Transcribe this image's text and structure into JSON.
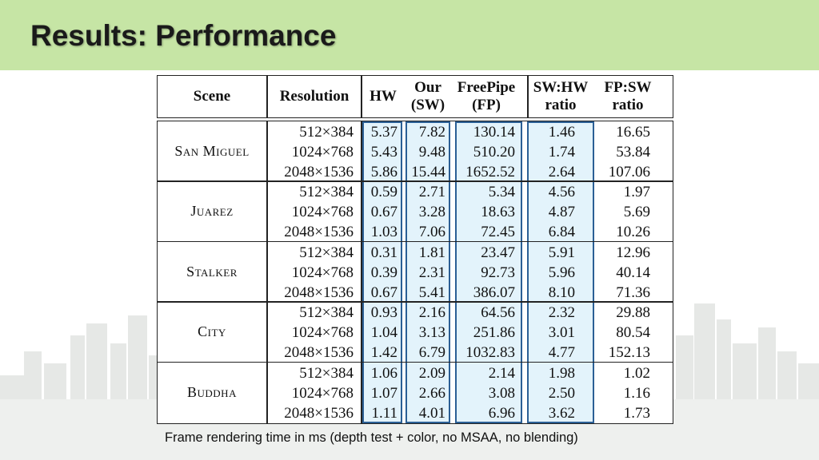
{
  "slide": {
    "title": "Results: Performance",
    "caption": "Frame rendering time in ms (depth test + color, no MSAA, no blending)"
  },
  "table": {
    "headers": {
      "scene": "Scene",
      "resolution": "Resolution",
      "hw": "HW",
      "sw_line1": "Our",
      "sw_line2": "(SW)",
      "fp_line1": "FreePipe",
      "fp_line2": "(FP)",
      "swhw_line1": "SW:HW",
      "swhw_line2": "ratio",
      "fpsw_line1": "FP:SW",
      "fpsw_line2": "ratio"
    },
    "scenes": [
      {
        "name": "San Miguel",
        "rows": [
          {
            "res": "512×384",
            "hw": "5.37",
            "sw": "7.82",
            "fp": "130.14",
            "swhw": "1.46",
            "fpsw": "16.65"
          },
          {
            "res": "1024×768",
            "hw": "5.43",
            "sw": "9.48",
            "fp": "510.20",
            "swhw": "1.74",
            "fpsw": "53.84"
          },
          {
            "res": "2048×1536",
            "hw": "5.86",
            "sw": "15.44",
            "fp": "1652.52",
            "swhw": "2.64",
            "fpsw": "107.06"
          }
        ]
      },
      {
        "name": "Juarez",
        "rows": [
          {
            "res": "512×384",
            "hw": "0.59",
            "sw": "2.71",
            "fp": "5.34",
            "swhw": "4.56",
            "fpsw": "1.97"
          },
          {
            "res": "1024×768",
            "hw": "0.67",
            "sw": "3.28",
            "fp": "18.63",
            "swhw": "4.87",
            "fpsw": "5.69"
          },
          {
            "res": "2048×1536",
            "hw": "1.03",
            "sw": "7.06",
            "fp": "72.45",
            "swhw": "6.84",
            "fpsw": "10.26"
          }
        ]
      },
      {
        "name": "Stalker",
        "rows": [
          {
            "res": "512×384",
            "hw": "0.31",
            "sw": "1.81",
            "fp": "23.47",
            "swhw": "5.91",
            "fpsw": "12.96"
          },
          {
            "res": "1024×768",
            "hw": "0.39",
            "sw": "2.31",
            "fp": "92.73",
            "swhw": "5.96",
            "fpsw": "40.14"
          },
          {
            "res": "2048×1536",
            "hw": "0.67",
            "sw": "5.41",
            "fp": "386.07",
            "swhw": "8.10",
            "fpsw": "71.36"
          }
        ]
      },
      {
        "name": "City",
        "rows": [
          {
            "res": "512×384",
            "hw": "0.93",
            "sw": "2.16",
            "fp": "64.56",
            "swhw": "2.32",
            "fpsw": "29.88"
          },
          {
            "res": "1024×768",
            "hw": "1.04",
            "sw": "3.13",
            "fp": "251.86",
            "swhw": "3.01",
            "fpsw": "80.54"
          },
          {
            "res": "2048×1536",
            "hw": "1.42",
            "sw": "6.79",
            "fp": "1032.83",
            "swhw": "4.77",
            "fpsw": "152.13"
          }
        ]
      },
      {
        "name": "Buddha",
        "rows": [
          {
            "res": "512×384",
            "hw": "1.06",
            "sw": "2.09",
            "fp": "2.14",
            "swhw": "1.98",
            "fpsw": "1.02"
          },
          {
            "res": "1024×768",
            "hw": "1.07",
            "sw": "2.66",
            "fp": "3.08",
            "swhw": "2.50",
            "fpsw": "1.16"
          },
          {
            "res": "2048×1536",
            "hw": "1.11",
            "sw": "4.01",
            "fp": "6.96",
            "swhw": "3.62",
            "fpsw": "1.73"
          }
        ]
      }
    ]
  },
  "colors": {
    "title_bar": "#c6e5a5",
    "highlight_fill": "#e3f3fb",
    "highlight_border": "#2b5f95"
  }
}
